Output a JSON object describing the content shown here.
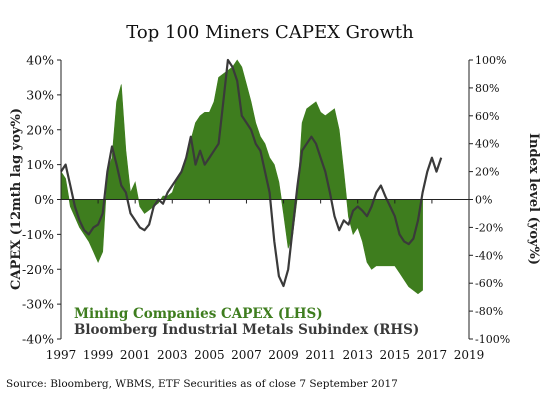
{
  "chart_data": {
    "type": "area",
    "title": "Top 100 Miners CAPEX Growth",
    "left_axis": {
      "label": "CAPEX (12mth lag yoy%)",
      "ylim": [
        -40,
        40
      ],
      "ticks": [
        -40,
        -30,
        -20,
        -10,
        0,
        10,
        20,
        30,
        40
      ],
      "tick_labels": [
        "-40%",
        "-30%",
        "-20%",
        "-10%",
        "0%",
        "10%",
        "20%",
        "30%",
        "40%"
      ]
    },
    "right_axis": {
      "label": "Index level (yoy%)",
      "ylim": [
        -100,
        100
      ],
      "ticks": [
        -100,
        -80,
        -60,
        -40,
        -20,
        0,
        20,
        40,
        60,
        80,
        100
      ],
      "tick_labels": [
        "-100%",
        "-80%",
        "-60%",
        "-40%",
        "-20%",
        "0%",
        "20%",
        "40%",
        "60%",
        "80%",
        "100%"
      ]
    },
    "x_axis": {
      "xlim": [
        1997,
        2019
      ],
      "ticks": [
        1997,
        1999,
        2001,
        2003,
        2005,
        2007,
        2009,
        2011,
        2013,
        2015,
        2017,
        2019
      ],
      "tick_labels": [
        "1997",
        "1999",
        "2001",
        "2003",
        "2005",
        "2007",
        "2009",
        "2011",
        "2013",
        "2015",
        "2017",
        "2019"
      ]
    },
    "legend_position": "bottom-left",
    "grid": false,
    "series": [
      {
        "name": "Mining Companies CAPEX (LHS)",
        "type": "area",
        "axis": "left",
        "color": "#3e7d1e",
        "x": [
          1997.0,
          1997.25,
          1997.5,
          1997.75,
          1998.0,
          1998.25,
          1998.5,
          1998.75,
          1999.0,
          1999.25,
          1999.5,
          1999.75,
          2000.0,
          2000.25,
          2000.5,
          2000.75,
          2001.0,
          2001.25,
          2001.5,
          2001.75,
          2002.0,
          2002.25,
          2002.5,
          2002.75,
          2003.0,
          2003.25,
          2003.5,
          2003.75,
          2004.0,
          2004.25,
          2004.5,
          2004.75,
          2005.0,
          2005.25,
          2005.5,
          2005.75,
          2006.0,
          2006.25,
          2006.5,
          2006.75,
          2007.0,
          2007.25,
          2007.5,
          2007.75,
          2008.0,
          2008.25,
          2008.5,
          2008.75,
          2009.0,
          2009.25,
          2009.5,
          2009.75,
          2010.0,
          2010.25,
          2010.5,
          2010.75,
          2011.0,
          2011.25,
          2011.5,
          2011.75,
          2012.0,
          2012.25,
          2012.5,
          2012.75,
          2013.0,
          2013.25,
          2013.5,
          2013.75,
          2014.0,
          2014.25,
          2014.5,
          2014.75,
          2015.0,
          2015.25,
          2015.5,
          2015.75,
          2016.0,
          2016.25,
          2016.5
        ],
        "values": [
          8,
          6,
          -2,
          -5,
          -8,
          -10,
          -12,
          -15,
          -18,
          -15,
          8,
          12,
          28,
          33,
          14,
          2,
          5,
          -2,
          -4,
          -3,
          -2,
          -1,
          1,
          1,
          2,
          6,
          8,
          12,
          17,
          22,
          24,
          25,
          25,
          28,
          35,
          36,
          37,
          38,
          40,
          38,
          33,
          28,
          22,
          18,
          16,
          12,
          10,
          5,
          -4,
          -14,
          -10,
          1,
          22,
          26,
          27,
          28,
          25,
          24,
          25,
          26,
          20,
          8,
          -5,
          -10,
          -8,
          -12,
          -18,
          -20,
          -19,
          -19,
          -19,
          -19,
          -19,
          -21,
          -23,
          -25,
          -26,
          -27,
          -26
        ]
      },
      {
        "name": "Bloomberg Industrial Metals Subindex (RHS)",
        "type": "line",
        "axis": "right",
        "color": "#3a3a3a",
        "x": [
          1997.0,
          1997.25,
          1997.5,
          1997.75,
          1998.0,
          1998.25,
          1998.5,
          1998.75,
          1999.0,
          1999.25,
          1999.5,
          1999.75,
          2000.0,
          2000.25,
          2000.5,
          2000.75,
          2001.0,
          2001.25,
          2001.5,
          2001.75,
          2002.0,
          2002.25,
          2002.5,
          2002.75,
          2003.0,
          2003.25,
          2003.5,
          2003.75,
          2004.0,
          2004.25,
          2004.5,
          2004.75,
          2005.0,
          2005.25,
          2005.5,
          2005.75,
          2006.0,
          2006.25,
          2006.5,
          2006.75,
          2007.0,
          2007.25,
          2007.5,
          2007.75,
          2008.0,
          2008.25,
          2008.5,
          2008.75,
          2009.0,
          2009.25,
          2009.5,
          2009.75,
          2010.0,
          2010.25,
          2010.5,
          2010.75,
          2011.0,
          2011.25,
          2011.5,
          2011.75,
          2012.0,
          2012.25,
          2012.5,
          2012.75,
          2013.0,
          2013.25,
          2013.5,
          2013.75,
          2014.0,
          2014.25,
          2014.5,
          2014.75,
          2015.0,
          2015.25,
          2015.5,
          2015.75,
          2016.0,
          2016.25,
          2016.5,
          2016.75,
          2017.0,
          2017.25,
          2017.5
        ],
        "values": [
          20,
          25,
          10,
          -5,
          -15,
          -22,
          -25,
          -20,
          -18,
          -10,
          20,
          38,
          25,
          10,
          5,
          -10,
          -15,
          -20,
          -22,
          -18,
          -5,
          0,
          -3,
          5,
          10,
          15,
          20,
          30,
          45,
          25,
          35,
          25,
          30,
          35,
          40,
          70,
          100,
          95,
          85,
          60,
          55,
          50,
          40,
          35,
          20,
          5,
          -30,
          -55,
          -62,
          -50,
          -20,
          10,
          35,
          40,
          45,
          40,
          30,
          20,
          5,
          -12,
          -22,
          -15,
          -18,
          -8,
          -5,
          -8,
          -12,
          -5,
          5,
          10,
          2,
          -5,
          -12,
          -25,
          -30,
          -32,
          -28,
          -15,
          5,
          20,
          30,
          20,
          30
        ]
      }
    ]
  },
  "source": "Source: Bloomberg, WBMS, ETF Securities as of close 7 September 2017"
}
